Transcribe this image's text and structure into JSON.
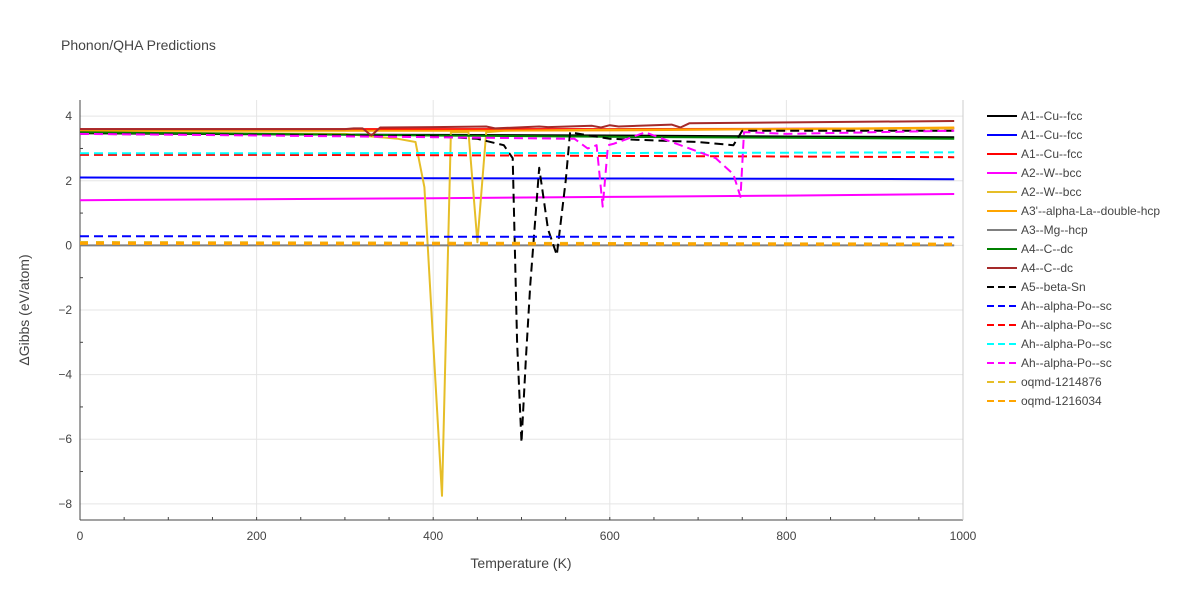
{
  "chart_data": {
    "type": "line",
    "title": "Phonon/QHA Predictions",
    "xlabel": "Temperature (K)",
    "ylabel": "ΔGibbs (eV/atom)",
    "xlim": [
      0,
      1000
    ],
    "ylim": [
      -8.5,
      4.5
    ],
    "xticks": [
      0,
      200,
      400,
      600,
      800,
      1000
    ],
    "yticks": [
      -8,
      -6,
      -4,
      -2,
      0,
      2,
      4
    ],
    "xtick_labels": [
      "0",
      "200",
      "400",
      "600",
      "800",
      "1000"
    ],
    "ytick_labels": [
      "−8",
      "−6",
      "−4",
      "−2",
      "0",
      "2",
      "4"
    ],
    "grid": true,
    "legend_position": "right",
    "series": [
      {
        "name": "A1--Cu--fcc",
        "color": "#000000",
        "dash": "solid",
        "x": [
          0,
          200,
          400,
          600,
          800,
          990
        ],
        "y": [
          3.47,
          3.44,
          3.42,
          3.4,
          3.37,
          3.35
        ]
      },
      {
        "name": "A1--Cu--fcc",
        "color": "#0000ff",
        "dash": "solid",
        "x": [
          0,
          200,
          400,
          600,
          800,
          990
        ],
        "y": [
          2.1,
          2.09,
          2.08,
          2.07,
          2.06,
          2.05
        ]
      },
      {
        "name": "A1--Cu--fcc",
        "color": "#ff0000",
        "dash": "solid",
        "x": [
          0,
          200,
          400,
          600,
          800,
          990
        ],
        "y": [
          3.6,
          3.6,
          3.6,
          3.6,
          3.61,
          3.62
        ]
      },
      {
        "name": "A2--W--bcc",
        "color": "#ff00ff",
        "dash": "solid",
        "x": [
          0,
          200,
          400,
          600,
          800,
          990
        ],
        "y": [
          1.4,
          1.43,
          1.46,
          1.5,
          1.54,
          1.59
        ]
      },
      {
        "name": "A2--W--bcc",
        "color": "#e6be28",
        "dash": "solid",
        "x": [
          0,
          300,
          340,
          360,
          380,
          390,
          400,
          410,
          420,
          440,
          450,
          460,
          480,
          600,
          800,
          990
        ],
        "y": [
          3.5,
          3.45,
          3.35,
          3.3,
          3.2,
          1.8,
          -3.0,
          -7.75,
          3.5,
          3.5,
          0.1,
          3.5,
          3.55,
          3.58,
          3.6,
          3.62
        ]
      },
      {
        "name": "A3'--alpha-La--double-hcp",
        "color": "#ffa500",
        "dash": "solid",
        "x": [
          0,
          200,
          400,
          600,
          800,
          990
        ],
        "y": [
          3.55,
          3.55,
          3.55,
          3.56,
          3.6,
          3.65
        ]
      },
      {
        "name": "A3--Mg--hcp",
        "color": "#808080",
        "dash": "solid",
        "x": [
          0,
          990
        ],
        "y": [
          0.0,
          0.0
        ]
      },
      {
        "name": "A4--C--dc",
        "color": "#008000",
        "dash": "solid",
        "x": [
          0,
          200,
          400,
          600,
          800,
          990
        ],
        "y": [
          3.5,
          3.45,
          3.4,
          3.36,
          3.33,
          3.3
        ]
      },
      {
        "name": "A4--C--dc",
        "color": "#a52a2a",
        "dash": "solid",
        "x": [
          0,
          300,
          310,
          320,
          330,
          340,
          400,
          460,
          470,
          520,
          530,
          580,
          590,
          600,
          610,
          670,
          680,
          690,
          990
        ],
        "y": [
          3.6,
          3.6,
          3.62,
          3.62,
          3.4,
          3.65,
          3.66,
          3.68,
          3.62,
          3.68,
          3.66,
          3.7,
          3.65,
          3.72,
          3.68,
          3.74,
          3.65,
          3.78,
          3.85
        ]
      },
      {
        "name": "A5--beta-Sn",
        "color": "#000000",
        "dash": "dash",
        "x": [
          0,
          200,
          400,
          450,
          480,
          490,
          495,
          500,
          505,
          510,
          520,
          530,
          540,
          550,
          555,
          600,
          700,
          740,
          750,
          800,
          990
        ],
        "y": [
          3.45,
          3.42,
          3.38,
          3.3,
          3.1,
          2.7,
          -3.0,
          -6.1,
          -3.5,
          -1.2,
          2.4,
          0.5,
          -0.3,
          2.0,
          3.5,
          3.3,
          3.2,
          3.1,
          3.55,
          3.55,
          3.55
        ]
      },
      {
        "name": "Ah--alpha-Po--sc",
        "color": "#0000ff",
        "dash": "dash",
        "x": [
          0,
          200,
          400,
          600,
          800,
          990
        ],
        "y": [
          0.28,
          0.28,
          0.27,
          0.27,
          0.26,
          0.25
        ]
      },
      {
        "name": "Ah--alpha-Po--sc",
        "color": "#ff0000",
        "dash": "dash",
        "x": [
          0,
          200,
          400,
          600,
          800,
          990
        ],
        "y": [
          2.8,
          2.8,
          2.79,
          2.77,
          2.75,
          2.73
        ]
      },
      {
        "name": "Ah--alpha-Po--sc",
        "color": "#00ffff",
        "dash": "dash",
        "x": [
          0,
          200,
          400,
          600,
          800,
          990
        ],
        "y": [
          2.85,
          2.85,
          2.86,
          2.86,
          2.87,
          2.88
        ]
      },
      {
        "name": "Ah--alpha-Po--sc",
        "color": "#ff00ff",
        "dash": "dash",
        "x": [
          0,
          200,
          400,
          560,
          575,
          585,
          592,
          598,
          605,
          620,
          640,
          660,
          680,
          700,
          720,
          740,
          748,
          752,
          760,
          800,
          990
        ],
        "y": [
          3.45,
          3.4,
          3.35,
          3.3,
          3.0,
          3.1,
          1.2,
          3.1,
          3.15,
          3.3,
          3.5,
          3.3,
          3.1,
          2.9,
          2.7,
          2.2,
          1.5,
          3.5,
          3.5,
          3.45,
          3.55
        ]
      },
      {
        "name": "oqmd-1214876",
        "color": "#e6be28",
        "dash": "dash",
        "x": [
          0,
          990
        ],
        "y": [
          0.09,
          0.04
        ]
      },
      {
        "name": "oqmd-1216034",
        "color": "#ffa500",
        "dash": "dash",
        "x": [
          0,
          990
        ],
        "y": [
          0.06,
          0.03
        ]
      }
    ]
  }
}
